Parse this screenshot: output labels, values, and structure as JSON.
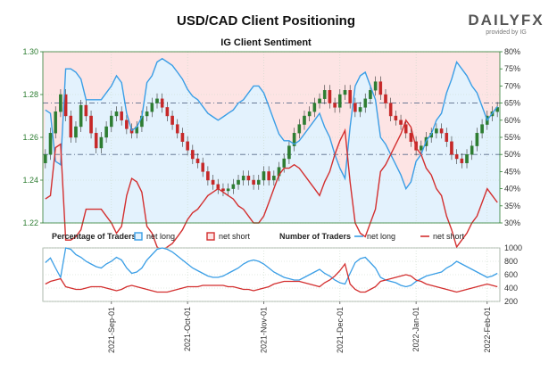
{
  "header": {
    "title": "USD/CAD Client Positioning",
    "brand": "DAILYFX",
    "brand_sub": "provided by IG"
  },
  "colors": {
    "net_long": "#3a9ee6",
    "net_short": "#d32f2f",
    "long_fill": "#e3f2fd",
    "short_fill": "#fde4e4",
    "candle_up": "#2e7d32",
    "candle_down": "#c62828",
    "grid": "#c8d8c8",
    "axis_green": "#2e7d32"
  },
  "chart_data": [
    {
      "type": "candlestick",
      "title": "IG Client Sentiment",
      "y_left": {
        "min": 1.22,
        "max": 1.3,
        "ticks": [
          "1.30",
          "1.28",
          "1.26",
          "1.24",
          "1.22"
        ]
      },
      "y_right": {
        "min": 30,
        "max": 80,
        "unit": "%",
        "ticks": [
          "80%",
          "75%",
          "70%",
          "65%",
          "60%",
          "55%",
          "50%",
          "45%",
          "40%",
          "35%",
          "30%"
        ]
      },
      "x_ticks": [
        "2021-Sep-01",
        "2021-Oct-01",
        "2021-Nov-01",
        "2021-Dec-01",
        "2022-Jan-01",
        "2022-Feb-01"
      ],
      "reference_lines": [
        {
          "value": 50,
          "axis": "right"
        },
        {
          "value": 65,
          "axis": "right"
        }
      ],
      "price_close": [
        1.252,
        1.262,
        1.272,
        1.28,
        1.27,
        1.26,
        1.265,
        1.275,
        1.27,
        1.262,
        1.255,
        1.26,
        1.265,
        1.27,
        1.272,
        1.268,
        1.264,
        1.262,
        1.265,
        1.27,
        1.272,
        1.276,
        1.278,
        1.274,
        1.27,
        1.266,
        1.262,
        1.258,
        1.254,
        1.25,
        1.248,
        1.244,
        1.24,
        1.238,
        1.236,
        1.235,
        1.236,
        1.238,
        1.24,
        1.242,
        1.24,
        1.238,
        1.24,
        1.244,
        1.24,
        1.242,
        1.246,
        1.25,
        1.256,
        1.262,
        1.266,
        1.27,
        1.272,
        1.276,
        1.278,
        1.282,
        1.276,
        1.274,
        1.28,
        1.282,
        1.276,
        1.272,
        1.274,
        1.278,
        1.282,
        1.286,
        1.28,
        1.276,
        1.27,
        1.268,
        1.266,
        1.262,
        1.258,
        1.254,
        1.256,
        1.26,
        1.262,
        1.264,
        1.262,
        1.258,
        1.252,
        1.25,
        1.248,
        1.252,
        1.256,
        1.262,
        1.266,
        1.27,
        1.272,
        1.274
      ],
      "net_long_pct": [
        63,
        62,
        48,
        47,
        75,
        75,
        74,
        72,
        66,
        66,
        66,
        66,
        68,
        70,
        73,
        71,
        62,
        57,
        58,
        61,
        71,
        73,
        77,
        78,
        77,
        76,
        74,
        72,
        69,
        67,
        66,
        64,
        62,
        61,
        60,
        61,
        62,
        63,
        65,
        66,
        68,
        70,
        70,
        68,
        64,
        60,
        56,
        54,
        54,
        53,
        54,
        56,
        58,
        60,
        62,
        58,
        55,
        50,
        46,
        43,
        58,
        70,
        73,
        74,
        70,
        66,
        55,
        53,
        50,
        47,
        44,
        40,
        42,
        48,
        50,
        54,
        56,
        60,
        62,
        68,
        72,
        77,
        75,
        73,
        70,
        68,
        64,
        60,
        62,
        64
      ],
      "net_short_pct": [
        37,
        38,
        52,
        53,
        25,
        25,
        26,
        28,
        34,
        34,
        34,
        34,
        32,
        30,
        27,
        29,
        38,
        43,
        42,
        39,
        29,
        27,
        23,
        22,
        23,
        24,
        26,
        28,
        31,
        33,
        34,
        36,
        38,
        39,
        40,
        39,
        38,
        37,
        35,
        34,
        32,
        30,
        30,
        32,
        36,
        40,
        44,
        46,
        46,
        47,
        46,
        44,
        42,
        40,
        38,
        42,
        45,
        50,
        54,
        57,
        42,
        30,
        27,
        26,
        30,
        34,
        45,
        47,
        50,
        53,
        56,
        60,
        58,
        52,
        50,
        46,
        44,
        40,
        38,
        32,
        28,
        23,
        25,
        27,
        30,
        32,
        36,
        40,
        38,
        36
      ]
    },
    {
      "type": "line",
      "legend_pct_label": "Percentage of Traders",
      "legend_num_label": "Number of Traders",
      "series_labels": [
        "net long",
        "net short"
      ],
      "y_right": {
        "min": 200,
        "max": 1000,
        "ticks": [
          "1000",
          "800",
          "600",
          "400",
          "200"
        ]
      },
      "net_long_count": [
        780,
        850,
        700,
        560,
        1000,
        980,
        900,
        860,
        800,
        760,
        720,
        700,
        760,
        800,
        860,
        820,
        700,
        620,
        640,
        700,
        820,
        900,
        980,
        1000,
        980,
        940,
        880,
        820,
        760,
        700,
        660,
        620,
        580,
        560,
        560,
        580,
        620,
        660,
        700,
        760,
        800,
        820,
        800,
        760,
        700,
        640,
        600,
        560,
        540,
        520,
        520,
        560,
        600,
        640,
        680,
        620,
        580,
        520,
        480,
        460,
        620,
        780,
        840,
        860,
        780,
        700,
        560,
        520,
        500,
        480,
        440,
        420,
        440,
        500,
        540,
        580,
        600,
        620,
        640,
        700,
        740,
        800,
        760,
        720,
        680,
        640,
        600,
        560,
        580,
        620
      ],
      "net_short_count": [
        460,
        500,
        520,
        540,
        420,
        400,
        380,
        380,
        400,
        420,
        420,
        420,
        400,
        380,
        360,
        380,
        420,
        440,
        420,
        400,
        380,
        360,
        340,
        340,
        340,
        360,
        380,
        400,
        420,
        420,
        420,
        440,
        440,
        440,
        440,
        440,
        420,
        420,
        400,
        380,
        380,
        360,
        380,
        400,
        420,
        460,
        480,
        500,
        500,
        500,
        500,
        480,
        460,
        440,
        420,
        480,
        520,
        580,
        660,
        760,
        460,
        380,
        340,
        340,
        380,
        420,
        500,
        520,
        540,
        560,
        580,
        600,
        580,
        520,
        500,
        460,
        440,
        420,
        400,
        380,
        360,
        340,
        360,
        380,
        400,
        420,
        440,
        460,
        440,
        420
      ]
    }
  ]
}
